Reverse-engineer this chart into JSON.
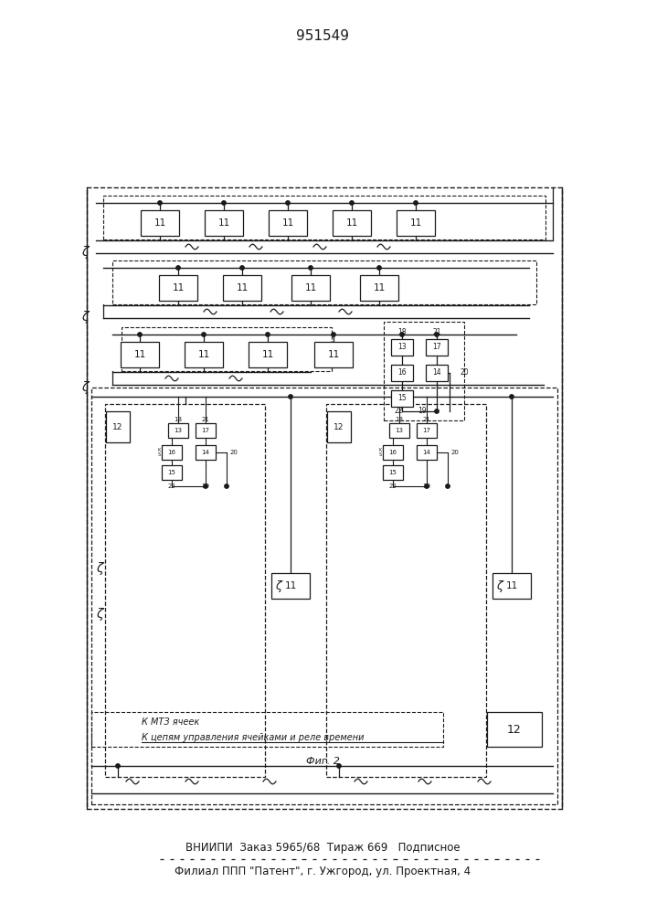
{
  "title": "951549",
  "fig_caption": "Фиг. 2",
  "footer_line1": "ВНИИПИ  Заказ 5965/68  Тираж 669   Подписное",
  "footer_line2": "Филиал ППП \"Патент\", г. Ужгород, ул. Проектная, 4",
  "bg_color": "#ffffff",
  "line_color": "#1a1a1a"
}
